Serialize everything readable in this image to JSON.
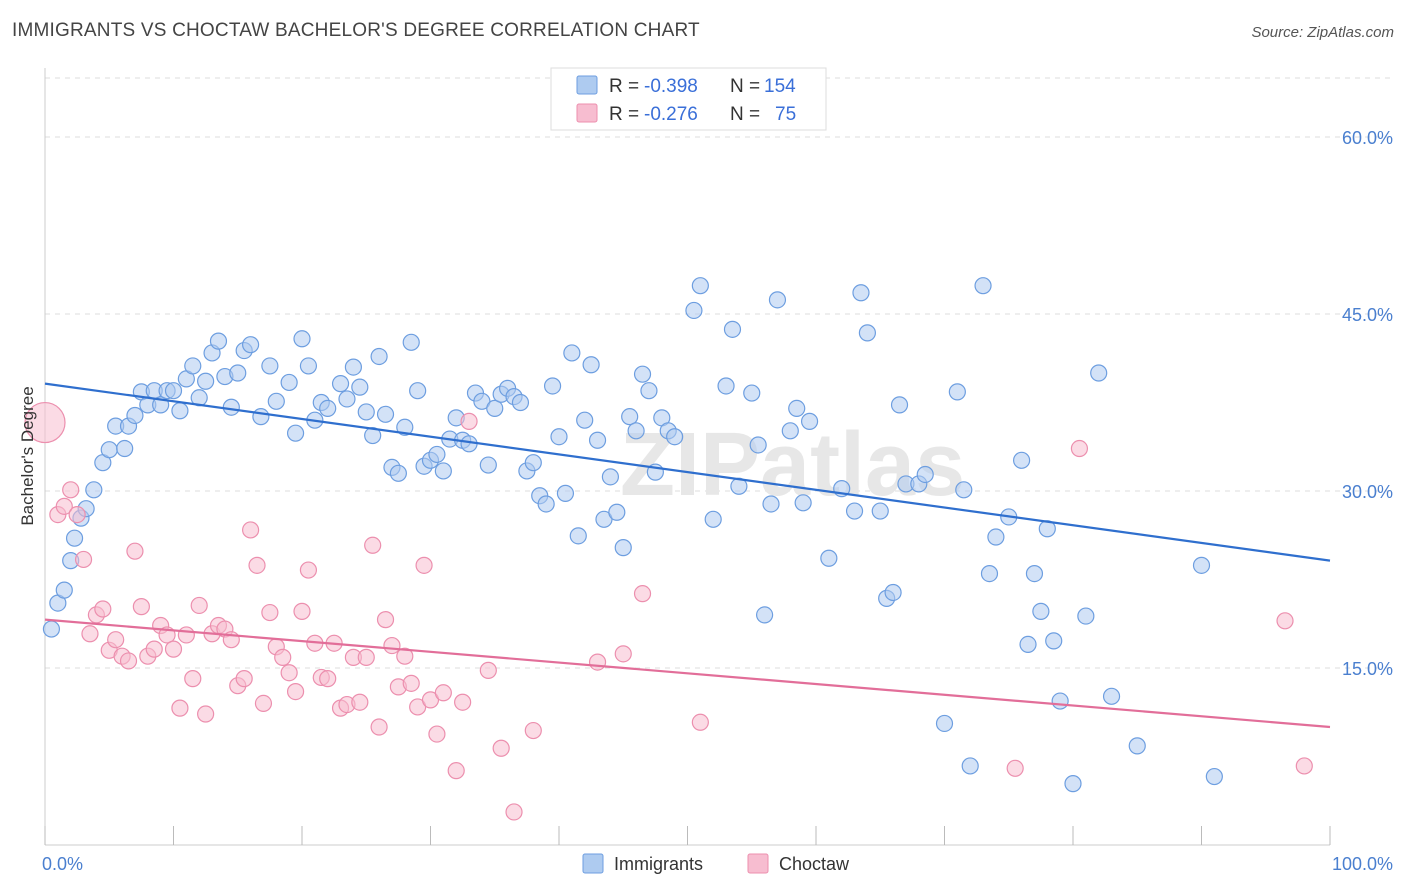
{
  "header": {
    "title": "IMMIGRANTS VS CHOCTAW BACHELOR'S DEGREE CORRELATION CHART",
    "source": "Source: ZipAtlas.com"
  },
  "watermark": "ZIPatlas",
  "colors": {
    "immigrants_fill": "#aecbf0",
    "immigrants_stroke": "#6d9ee0",
    "immigrants_line": "#2f6fce",
    "choctaw_fill": "#f7bdd0",
    "choctaw_stroke": "#ec8fae",
    "choctaw_line": "#e26e99",
    "axis_text": "#4a7fcf",
    "grid": "#dddddd"
  },
  "legend": {
    "r_label": "R =",
    "n_label": "N =",
    "rows": [
      {
        "series": "Immigrants",
        "r": "-0.398",
        "n": "154"
      },
      {
        "series": "Choctaw",
        "r": "-0.276",
        "n": "75"
      }
    ]
  },
  "chart_data": {
    "type": "scatter",
    "title": "IMMIGRANTS VS CHOCTAW BACHELOR'S DEGREE CORRELATION CHART",
    "xlabel": "",
    "ylabel": "Bachelor's Degree",
    "xlim": [
      0,
      100
    ],
    "ylim": [
      0,
      65
    ],
    "x_tick_labels": [
      "0.0%",
      "100.0%"
    ],
    "y_ticks": [
      15,
      30,
      45,
      60
    ],
    "y_tick_labels": [
      "15.0%",
      "30.0%",
      "45.0%",
      "60.0%"
    ],
    "grid": true,
    "legend_position": "bottom",
    "series": [
      {
        "name": "Immigrants",
        "trend": {
          "x": [
            0,
            100
          ],
          "y": [
            39.1,
            24.1
          ]
        },
        "points": [
          [
            0.5,
            18.3
          ],
          [
            1,
            20.5
          ],
          [
            1.5,
            21.6
          ],
          [
            2,
            24.1
          ],
          [
            2.3,
            26.0
          ],
          [
            2.8,
            27.7
          ],
          [
            3.2,
            28.5
          ],
          [
            3.8,
            30.1
          ],
          [
            4.5,
            32.4
          ],
          [
            5,
            33.5
          ],
          [
            5.5,
            35.5
          ],
          [
            6.2,
            33.6
          ],
          [
            6.5,
            35.5
          ],
          [
            7,
            36.4
          ],
          [
            7.5,
            38.4
          ],
          [
            8,
            37.3
          ],
          [
            8.5,
            38.5
          ],
          [
            9,
            37.3
          ],
          [
            9.5,
            38.5
          ],
          [
            10,
            38.5
          ],
          [
            10.5,
            36.8
          ],
          [
            11,
            39.5
          ],
          [
            11.5,
            40.6
          ],
          [
            12,
            37.9
          ],
          [
            12.5,
            39.3
          ],
          [
            13,
            41.7
          ],
          [
            13.5,
            42.7
          ],
          [
            14,
            39.7
          ],
          [
            14.5,
            37.1
          ],
          [
            15,
            40.0
          ],
          [
            15.5,
            41.9
          ],
          [
            16,
            42.4
          ],
          [
            16.8,
            36.3
          ],
          [
            17.5,
            40.6
          ],
          [
            18,
            37.6
          ],
          [
            19,
            39.2
          ],
          [
            19.5,
            34.9
          ],
          [
            20,
            42.9
          ],
          [
            20.5,
            40.6
          ],
          [
            21,
            36.0
          ],
          [
            21.5,
            37.5
          ],
          [
            22,
            37.0
          ],
          [
            23,
            39.1
          ],
          [
            23.5,
            37.8
          ],
          [
            24,
            40.5
          ],
          [
            24.5,
            38.8
          ],
          [
            25,
            36.7
          ],
          [
            25.5,
            34.7
          ],
          [
            26,
            41.4
          ],
          [
            26.5,
            36.5
          ],
          [
            27,
            32.0
          ],
          [
            27.5,
            31.5
          ],
          [
            28,
            35.4
          ],
          [
            28.5,
            42.6
          ],
          [
            29,
            38.5
          ],
          [
            29.5,
            32.1
          ],
          [
            30,
            32.6
          ],
          [
            30.5,
            33.1
          ],
          [
            31,
            31.7
          ],
          [
            31.5,
            34.4
          ],
          [
            32,
            36.2
          ],
          [
            32.5,
            34.3
          ],
          [
            33,
            34.0
          ],
          [
            33.5,
            38.3
          ],
          [
            34,
            37.6
          ],
          [
            34.5,
            32.2
          ],
          [
            35,
            37.0
          ],
          [
            35.5,
            38.2
          ],
          [
            36,
            38.7
          ],
          [
            36.5,
            38.0
          ],
          [
            37,
            37.5
          ],
          [
            37.5,
            31.7
          ],
          [
            38,
            32.4
          ],
          [
            38.5,
            29.6
          ],
          [
            39,
            28.9
          ],
          [
            39.5,
            38.9
          ],
          [
            40,
            34.6
          ],
          [
            40.5,
            29.8
          ],
          [
            41,
            41.7
          ],
          [
            41.5,
            26.2
          ],
          [
            42,
            36.0
          ],
          [
            42.5,
            40.7
          ],
          [
            43,
            34.3
          ],
          [
            43.5,
            27.6
          ],
          [
            44,
            31.2
          ],
          [
            44.5,
            28.2
          ],
          [
            45,
            25.2
          ],
          [
            45.5,
            36.3
          ],
          [
            46,
            35.1
          ],
          [
            46.5,
            39.9
          ],
          [
            47,
            38.5
          ],
          [
            47.5,
            31.6
          ],
          [
            48,
            36.2
          ],
          [
            48.5,
            35.1
          ],
          [
            49,
            34.6
          ],
          [
            50.5,
            45.3
          ],
          [
            51,
            47.4
          ],
          [
            52,
            27.6
          ],
          [
            53,
            38.9
          ],
          [
            53.5,
            43.7
          ],
          [
            54,
            30.4
          ],
          [
            55,
            38.3
          ],
          [
            55.5,
            33.9
          ],
          [
            56,
            19.5
          ],
          [
            56.5,
            28.9
          ],
          [
            57,
            46.2
          ],
          [
            58,
            35.1
          ],
          [
            58.5,
            37.0
          ],
          [
            59,
            29.0
          ],
          [
            59.5,
            35.9
          ],
          [
            61,
            24.3
          ],
          [
            62,
            30.2
          ],
          [
            63,
            28.3
          ],
          [
            63.5,
            46.8
          ],
          [
            64,
            43.4
          ],
          [
            65,
            28.3
          ],
          [
            65.5,
            20.9
          ],
          [
            66,
            21.4
          ],
          [
            66.5,
            37.3
          ],
          [
            67,
            30.6
          ],
          [
            68,
            30.6
          ],
          [
            68.5,
            31.4
          ],
          [
            70,
            10.3
          ],
          [
            71,
            38.4
          ],
          [
            71.5,
            30.1
          ],
          [
            72,
            6.7
          ],
          [
            73,
            47.4
          ],
          [
            73.5,
            23.0
          ],
          [
            74,
            26.1
          ],
          [
            75,
            27.8
          ],
          [
            76,
            32.6
          ],
          [
            76.5,
            17.0
          ],
          [
            77,
            23.0
          ],
          [
            77.5,
            19.8
          ],
          [
            78,
            26.8
          ],
          [
            78.5,
            17.3
          ],
          [
            79,
            12.2
          ],
          [
            80,
            5.2
          ],
          [
            81,
            19.4
          ],
          [
            82,
            40.0
          ],
          [
            83,
            12.6
          ],
          [
            85,
            8.4
          ],
          [
            90,
            23.7
          ],
          [
            91,
            5.8
          ]
        ]
      },
      {
        "name": "Choctaw",
        "trend": {
          "x": [
            0,
            100
          ],
          "y": [
            19.1,
            10.0
          ]
        },
        "points": [
          [
            0,
            35.8
          ],
          [
            1,
            28.0
          ],
          [
            1.5,
            28.7
          ],
          [
            2,
            30.1
          ],
          [
            2.5,
            28.0
          ],
          [
            3,
            24.2
          ],
          [
            3.5,
            17.9
          ],
          [
            4,
            19.5
          ],
          [
            4.5,
            20.0
          ],
          [
            5,
            16.5
          ],
          [
            5.5,
            17.4
          ],
          [
            6,
            16.0
          ],
          [
            6.5,
            15.6
          ],
          [
            7,
            24.9
          ],
          [
            7.5,
            20.2
          ],
          [
            8,
            16.0
          ],
          [
            8.5,
            16.6
          ],
          [
            9,
            18.6
          ],
          [
            9.5,
            17.8
          ],
          [
            10,
            16.6
          ],
          [
            10.5,
            11.6
          ],
          [
            11,
            17.8
          ],
          [
            11.5,
            14.1
          ],
          [
            12,
            20.3
          ],
          [
            12.5,
            11.1
          ],
          [
            13,
            17.9
          ],
          [
            13.5,
            18.6
          ],
          [
            14,
            18.3
          ],
          [
            14.5,
            17.4
          ],
          [
            15,
            13.5
          ],
          [
            15.5,
            14.1
          ],
          [
            16,
            26.7
          ],
          [
            16.5,
            23.7
          ],
          [
            17,
            12.0
          ],
          [
            17.5,
            19.7
          ],
          [
            18,
            16.8
          ],
          [
            18.5,
            15.9
          ],
          [
            19,
            14.6
          ],
          [
            19.5,
            13.0
          ],
          [
            20,
            19.8
          ],
          [
            20.5,
            23.3
          ],
          [
            21,
            17.1
          ],
          [
            21.5,
            14.2
          ],
          [
            22,
            14.1
          ],
          [
            22.5,
            17.1
          ],
          [
            23,
            11.6
          ],
          [
            23.5,
            11.9
          ],
          [
            24,
            15.9
          ],
          [
            24.5,
            12.1
          ],
          [
            25,
            15.9
          ],
          [
            25.5,
            25.4
          ],
          [
            26,
            10.0
          ],
          [
            26.5,
            19.1
          ],
          [
            27,
            16.9
          ],
          [
            27.5,
            13.4
          ],
          [
            28,
            16.0
          ],
          [
            28.5,
            13.7
          ],
          [
            29,
            11.7
          ],
          [
            29.5,
            23.7
          ],
          [
            30,
            12.3
          ],
          [
            30.5,
            9.4
          ],
          [
            31,
            12.9
          ],
          [
            32,
            6.3
          ],
          [
            32.5,
            12.1
          ],
          [
            33,
            35.9
          ],
          [
            34.5,
            14.8
          ],
          [
            35.5,
            8.2
          ],
          [
            36.5,
            2.8
          ],
          [
            38,
            9.7
          ],
          [
            43,
            15.5
          ],
          [
            45,
            16.2
          ],
          [
            46.5,
            21.3
          ],
          [
            51,
            10.4
          ],
          [
            75.5,
            6.5
          ],
          [
            80.5,
            33.6
          ],
          [
            96.5,
            19.0
          ],
          [
            98,
            6.7
          ]
        ]
      }
    ]
  },
  "bottom_legend": {
    "items": [
      {
        "label": "Immigrants"
      },
      {
        "label": "Choctaw"
      }
    ]
  }
}
